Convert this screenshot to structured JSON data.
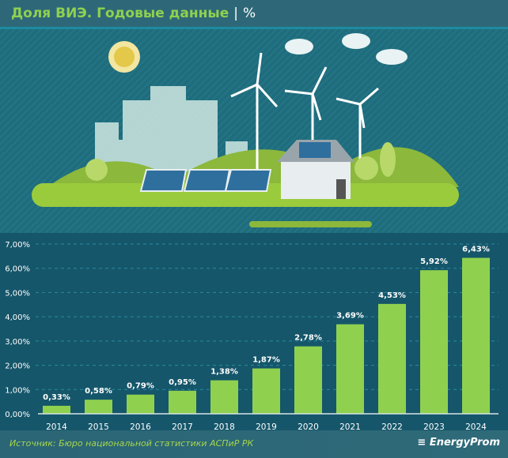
{
  "header": {
    "title": "Доля ВИЭ. Годовые данные",
    "separator": "|",
    "unit": "%"
  },
  "footer": {
    "source": "Источник: Бюро национальной статистики АСПиР РК",
    "logo": "EnergyProm"
  },
  "colors": {
    "bar": "#8fd14f",
    "background": "#15566a",
    "title": "#8fd14f"
  },
  "chart_data": {
    "type": "bar",
    "title": "Доля ВИЭ. Годовые данные",
    "categories": [
      "2014",
      "2015",
      "2016",
      "2017",
      "2018",
      "2019",
      "2020",
      "2021",
      "2022",
      "2023",
      "2024"
    ],
    "values": [
      0.33,
      0.58,
      0.79,
      0.95,
      1.38,
      1.87,
      2.78,
      3.69,
      4.53,
      5.92,
      6.43
    ],
    "labels": [
      "0,33%",
      "0,58%",
      "0,79%",
      "0,95%",
      "1,38%",
      "1,87%",
      "2,78%",
      "3,69%",
      "4,53%",
      "5,92%",
      "6,43%"
    ],
    "yticks": [
      "0,00%",
      "1,00%",
      "2,00%",
      "3,00%",
      "4,00%",
      "5,00%",
      "6,00%",
      "7,00%"
    ],
    "ylim": [
      0,
      7
    ],
    "grid": true,
    "xlabel": "",
    "ylabel": ""
  }
}
